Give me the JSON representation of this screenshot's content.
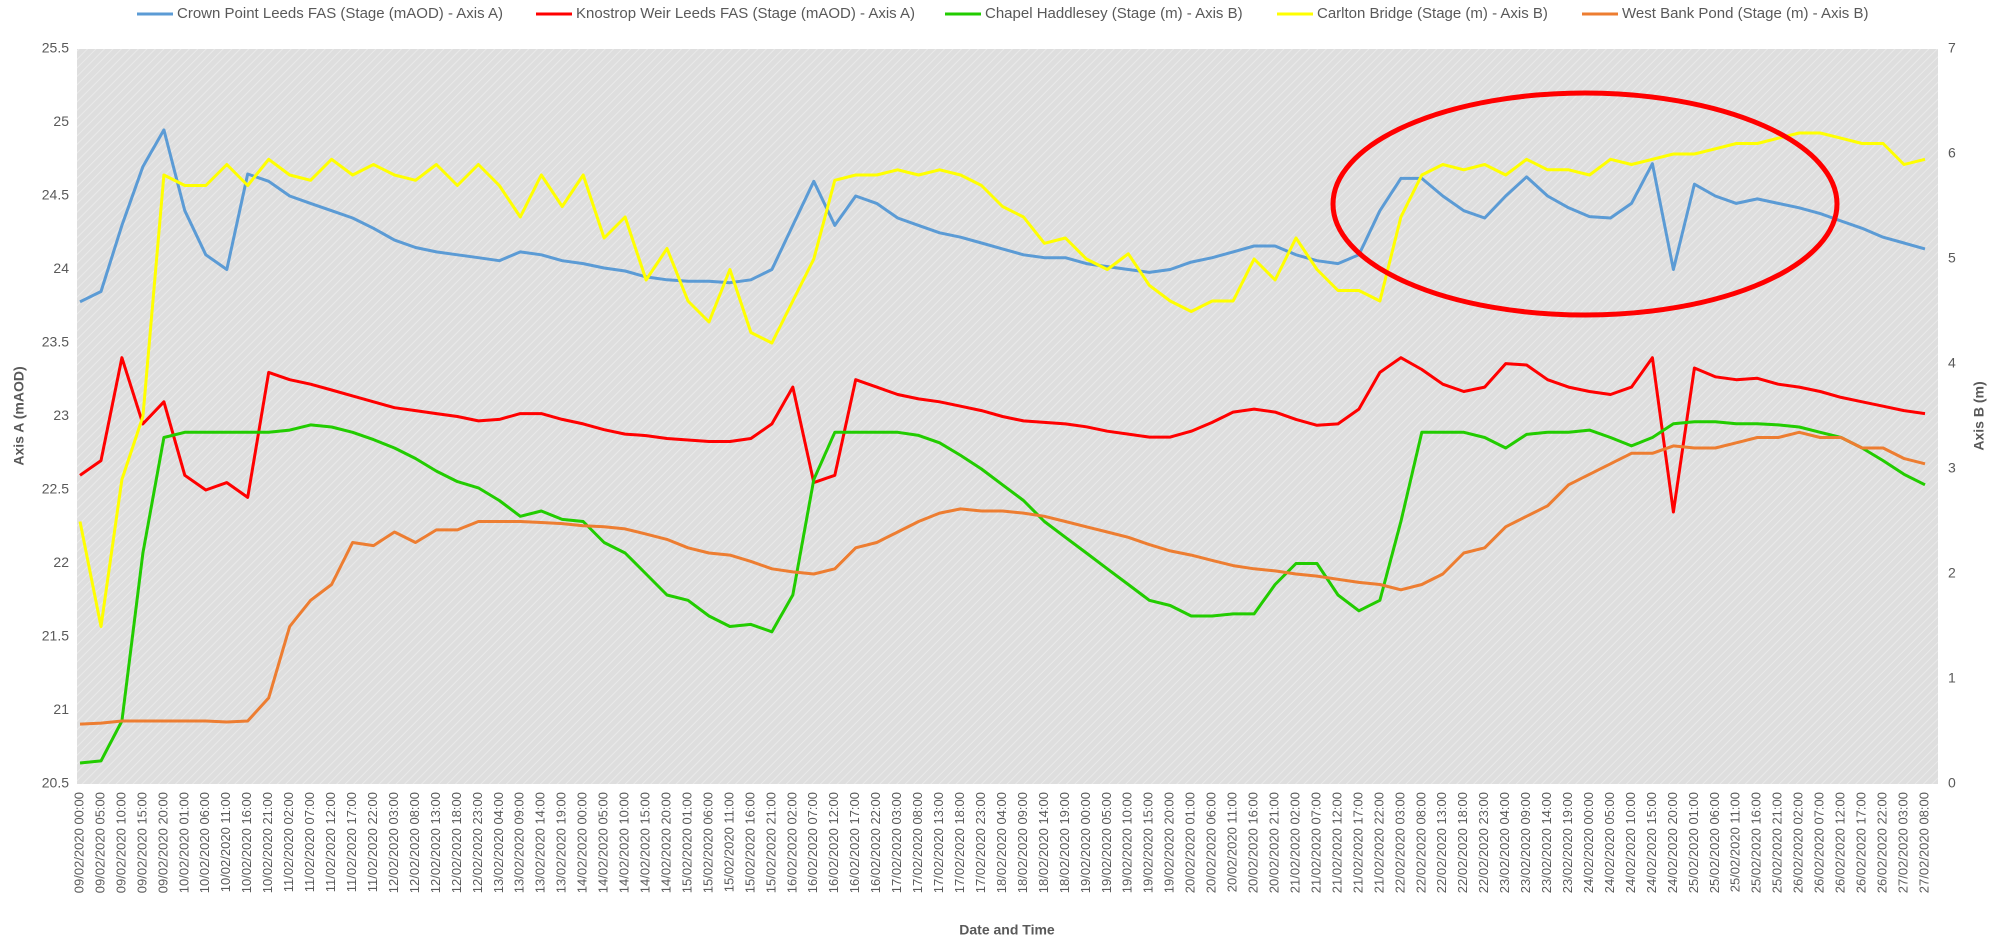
{
  "chart_data": {
    "type": "line",
    "x_label": "Date and Time",
    "y_label": "Axis A (mAOD)",
    "y2_label": "Axis B (m)",
    "ylim": [
      20.5,
      25.5
    ],
    "yticks": [
      20.5,
      21,
      21.5,
      22,
      22.5,
      23,
      23.5,
      24,
      24.5,
      25,
      25.5
    ],
    "y2lim": [
      0,
      7
    ],
    "y2ticks": [
      0,
      1,
      2,
      3,
      4,
      5,
      6,
      7
    ],
    "grid": false,
    "legend": "top",
    "categories": [
      "09/02/2020 00:00",
      "09/02/2020 05:00",
      "09/02/2020 10:00",
      "09/02/2020 15:00",
      "09/02/2020 20:00",
      "10/02/2020 01:00",
      "10/02/2020 06:00",
      "10/02/2020 11:00",
      "10/02/2020 16:00",
      "10/02/2020 21:00",
      "11/02/2020 02:00",
      "11/02/2020 07:00",
      "11/02/2020 12:00",
      "11/02/2020 17:00",
      "11/02/2020 22:00",
      "12/02/2020 03:00",
      "12/02/2020 08:00",
      "12/02/2020 13:00",
      "12/02/2020 18:00",
      "12/02/2020 23:00",
      "13/02/2020 04:00",
      "13/02/2020 09:00",
      "13/02/2020 14:00",
      "13/02/2020 19:00",
      "14/02/2020 00:00",
      "14/02/2020 05:00",
      "14/02/2020 10:00",
      "14/02/2020 15:00",
      "14/02/2020 20:00",
      "15/02/2020 01:00",
      "15/02/2020 06:00",
      "15/02/2020 11:00",
      "15/02/2020 16:00",
      "15/02/2020 21:00",
      "16/02/2020 02:00",
      "16/02/2020 07:00",
      "16/02/2020 12:00",
      "16/02/2020 17:00",
      "16/02/2020 22:00",
      "17/02/2020 03:00",
      "17/02/2020 08:00",
      "17/02/2020 13:00",
      "17/02/2020 18:00",
      "17/02/2020 23:00",
      "18/02/2020 04:00",
      "18/02/2020 09:00",
      "18/02/2020 14:00",
      "18/02/2020 19:00",
      "19/02/2020 00:00",
      "19/02/2020 05:00",
      "19/02/2020 10:00",
      "19/02/2020 15:00",
      "19/02/2020 20:00",
      "20/02/2020 01:00",
      "20/02/2020 06:00",
      "20/02/2020 11:00",
      "20/02/2020 16:00",
      "20/02/2020 21:00",
      "21/02/2020 02:00",
      "21/02/2020 07:00",
      "21/02/2020 12:00",
      "21/02/2020 17:00",
      "21/02/2020 22:00",
      "22/02/2020 03:00",
      "22/02/2020 08:00",
      "22/02/2020 13:00",
      "22/02/2020 18:00",
      "22/02/2020 23:00",
      "23/02/2020 04:00",
      "23/02/2020 09:00",
      "23/02/2020 14:00",
      "23/02/2020 19:00",
      "24/02/2020 00:00",
      "24/02/2020 05:00",
      "24/02/2020 10:00",
      "24/02/2020 15:00",
      "24/02/2020 20:00",
      "25/02/2020 01:00",
      "25/02/2020 06:00",
      "25/02/2020 11:00",
      "25/02/2020 16:00",
      "25/02/2020 21:00",
      "26/02/2020 02:00",
      "26/02/2020 07:00",
      "26/02/2020 12:00",
      "26/02/2020 17:00",
      "26/02/2020 22:00",
      "27/02/2020 03:00",
      "27/02/2020 08:00"
    ],
    "series": [
      {
        "name": "Crown Point Leeds FAS (Stage (mAOD) - Axis A)",
        "color": "#5b9bd5",
        "axis": "y",
        "values": [
          23.78,
          23.85,
          24.3,
          24.7,
          24.95,
          24.4,
          24.1,
          24.0,
          24.65,
          24.6,
          24.5,
          24.45,
          24.4,
          24.35,
          24.28,
          24.2,
          24.15,
          24.12,
          24.1,
          24.08,
          24.06,
          24.12,
          24.1,
          24.06,
          24.04,
          24.01,
          23.99,
          23.95,
          23.93,
          23.92,
          23.92,
          23.91,
          23.93,
          24.0,
          24.3,
          24.6,
          24.3,
          24.5,
          24.45,
          24.35,
          24.3,
          24.25,
          24.22,
          24.18,
          24.14,
          24.1,
          24.08,
          24.08,
          24.04,
          24.02,
          24.0,
          23.98,
          24.0,
          24.05,
          24.08,
          24.12,
          24.16,
          24.16,
          24.1,
          24.06,
          24.04,
          24.1,
          24.4,
          24.62,
          24.62,
          24.5,
          24.4,
          24.35,
          24.5,
          24.63,
          24.5,
          24.42,
          24.36,
          24.35,
          24.45,
          24.72,
          24.0,
          24.58,
          24.5,
          24.45,
          24.48,
          24.45,
          24.42,
          24.38,
          24.33,
          24.28,
          24.22,
          24.18,
          24.14
        ]
      },
      {
        "name": "Knostrop Weir Leeds FAS (Stage (mAOD) - Axis A)",
        "color": "#ff0000",
        "axis": "y",
        "values": [
          22.6,
          22.7,
          23.4,
          22.95,
          23.1,
          22.6,
          22.5,
          22.55,
          22.45,
          23.3,
          23.25,
          23.22,
          23.18,
          23.14,
          23.1,
          23.06,
          23.04,
          23.02,
          23.0,
          22.97,
          22.98,
          23.02,
          23.02,
          22.98,
          22.95,
          22.91,
          22.88,
          22.87,
          22.85,
          22.84,
          22.83,
          22.83,
          22.85,
          22.95,
          23.2,
          22.55,
          22.6,
          23.25,
          23.2,
          23.15,
          23.12,
          23.1,
          23.07,
          23.04,
          23.0,
          22.97,
          22.96,
          22.95,
          22.93,
          22.9,
          22.88,
          22.86,
          22.86,
          22.9,
          22.96,
          23.03,
          23.05,
          23.03,
          22.98,
          22.94,
          22.95,
          23.05,
          23.3,
          23.4,
          23.32,
          23.22,
          23.17,
          23.2,
          23.36,
          23.35,
          23.25,
          23.2,
          23.17,
          23.15,
          23.2,
          23.4,
          22.35,
          23.33,
          23.27,
          23.25,
          23.26,
          23.22,
          23.2,
          23.17,
          23.13,
          23.1,
          23.07,
          23.04,
          23.02
        ]
      },
      {
        "name": "Chapel Haddlesey (Stage (m) - Axis B)",
        "color": "#22cc00",
        "axis": "y2",
        "values": [
          0.2,
          0.22,
          0.6,
          2.2,
          3.3,
          3.35,
          3.35,
          3.35,
          3.35,
          3.35,
          3.37,
          3.42,
          3.4,
          3.35,
          3.28,
          3.2,
          3.1,
          2.98,
          2.88,
          2.82,
          2.7,
          2.55,
          2.6,
          2.52,
          2.5,
          2.3,
          2.2,
          2.0,
          1.8,
          1.75,
          1.6,
          1.5,
          1.52,
          1.45,
          1.8,
          2.9,
          3.35,
          3.35,
          3.35,
          3.35,
          3.32,
          3.25,
          3.13,
          3.0,
          2.85,
          2.7,
          2.5,
          2.35,
          2.2,
          2.05,
          1.9,
          1.75,
          1.7,
          1.6,
          1.6,
          1.62,
          1.62,
          1.9,
          2.1,
          2.1,
          1.8,
          1.65,
          1.75,
          2.5,
          3.35,
          3.35,
          3.35,
          3.3,
          3.2,
          3.33,
          3.35,
          3.35,
          3.37,
          3.3,
          3.22,
          3.3,
          3.43,
          3.45,
          3.45,
          3.43,
          3.43,
          3.42,
          3.4,
          3.35,
          3.3,
          3.2,
          3.08,
          2.95,
          2.85
        ]
      },
      {
        "name": "Carlton Bridge (Stage (m) - Axis B)",
        "color": "#ffff00",
        "axis": "y2",
        "values": [
          2.5,
          1.5,
          2.9,
          3.5,
          5.8,
          5.7,
          5.7,
          5.9,
          5.7,
          5.95,
          5.8,
          5.75,
          5.95,
          5.8,
          5.9,
          5.8,
          5.75,
          5.9,
          5.7,
          5.9,
          5.7,
          5.4,
          5.8,
          5.5,
          5.8,
          5.2,
          5.4,
          4.8,
          5.1,
          4.6,
          4.4,
          4.9,
          4.3,
          4.2,
          4.6,
          5.0,
          5.75,
          5.8,
          5.8,
          5.85,
          5.8,
          5.85,
          5.8,
          5.7,
          5.5,
          5.4,
          5.15,
          5.2,
          5.0,
          4.9,
          5.05,
          4.75,
          4.6,
          4.5,
          4.6,
          4.6,
          5.0,
          4.8,
          5.2,
          4.9,
          4.7,
          4.7,
          4.6,
          5.4,
          5.8,
          5.9,
          5.85,
          5.9,
          5.8,
          5.95,
          5.85,
          5.85,
          5.8,
          5.95,
          5.9,
          5.95,
          6.0,
          6.0,
          6.05,
          6.1,
          6.1,
          6.15,
          6.2,
          6.2,
          6.15,
          6.1,
          6.1,
          5.9,
          5.95
        ]
      },
      {
        "name": "West Bank Pond (Stage (m) - Axis B)",
        "color": "#ed7d31",
        "axis": "y2",
        "values": [
          0.57,
          0.58,
          0.6,
          0.6,
          0.6,
          0.6,
          0.6,
          0.59,
          0.6,
          0.82,
          1.5,
          1.75,
          1.9,
          2.3,
          2.27,
          2.4,
          2.3,
          2.42,
          2.42,
          2.5,
          2.5,
          2.5,
          2.49,
          2.48,
          2.46,
          2.45,
          2.43,
          2.38,
          2.33,
          2.25,
          2.2,
          2.18,
          2.12,
          2.05,
          2.02,
          2.0,
          2.05,
          2.25,
          2.3,
          2.4,
          2.5,
          2.58,
          2.62,
          2.6,
          2.6,
          2.58,
          2.55,
          2.5,
          2.45,
          2.4,
          2.35,
          2.28,
          2.22,
          2.18,
          2.13,
          2.08,
          2.05,
          2.03,
          2.0,
          1.98,
          1.95,
          1.92,
          1.9,
          1.85,
          1.9,
          2.0,
          2.2,
          2.25,
          2.45,
          2.55,
          2.65,
          2.85,
          2.95,
          3.05,
          3.15,
          3.15,
          3.22,
          3.2,
          3.2,
          3.25,
          3.3,
          3.3,
          3.35,
          3.3,
          3.3,
          3.2,
          3.2,
          3.1,
          3.05
        ]
      }
    ]
  }
}
